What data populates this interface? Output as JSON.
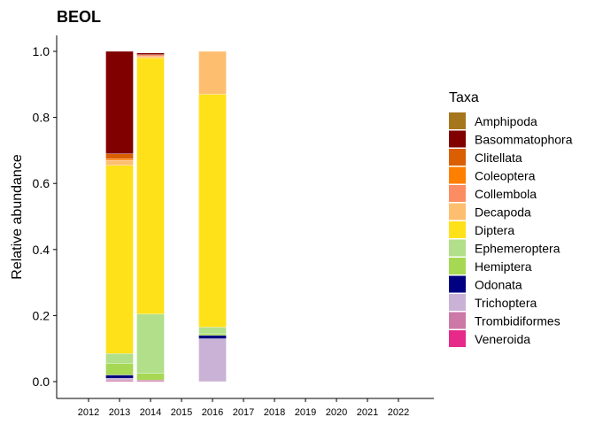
{
  "chart_data": {
    "type": "bar",
    "stacked": true,
    "title": "BEOL",
    "xlabel": "",
    "ylabel": "Relative abundance",
    "ylim": [
      0,
      1
    ],
    "yticks": [
      0.0,
      0.2,
      0.4,
      0.6,
      0.8,
      1.0
    ],
    "ytick_labels": [
      "0.0",
      "0.2",
      "0.4",
      "0.6",
      "0.8",
      "1.0"
    ],
    "categories": [
      "2012",
      "2013",
      "2014",
      "2015",
      "2016",
      "2017",
      "2018",
      "2019",
      "2020",
      "2021",
      "2022"
    ],
    "legend_title": "Taxa",
    "legend_position": "right",
    "grid": false,
    "series": [
      {
        "name": "Veneroida",
        "color": "#E7298A",
        "values": [
          0,
          0,
          0,
          0,
          0,
          0,
          0,
          0,
          0,
          0,
          0
        ]
      },
      {
        "name": "Trombidiformes",
        "color": "#CC79A7",
        "values": [
          0,
          0.005,
          0.005,
          0,
          0,
          0,
          0,
          0,
          0,
          0,
          0
        ]
      },
      {
        "name": "Trichoptera",
        "color": "#CAB2D6",
        "values": [
          0,
          0.005,
          0,
          0,
          0.13,
          0,
          0,
          0,
          0,
          0,
          0
        ]
      },
      {
        "name": "Odonata",
        "color": "#000080",
        "values": [
          0,
          0.01,
          0,
          0,
          0.01,
          0,
          0,
          0,
          0,
          0,
          0
        ]
      },
      {
        "name": "Hemiptera",
        "color": "#A6D854",
        "values": [
          0,
          0.035,
          0.02,
          0,
          0.005,
          0,
          0,
          0,
          0,
          0,
          0
        ]
      },
      {
        "name": "Ephemeroptera",
        "color": "#B2DF8A",
        "values": [
          0,
          0.03,
          0.18,
          0,
          0.02,
          0,
          0,
          0,
          0,
          0,
          0
        ]
      },
      {
        "name": "Diptera",
        "color": "#FFE119",
        "values": [
          0,
          0.57,
          0.775,
          0,
          0.705,
          0,
          0,
          0,
          0,
          0,
          0
        ]
      },
      {
        "name": "Decapoda",
        "color": "#FDBF6F",
        "values": [
          0,
          0.015,
          0.005,
          0,
          0.13,
          0,
          0,
          0,
          0,
          0,
          0
        ]
      },
      {
        "name": "Collembola",
        "color": "#FC8D62",
        "values": [
          0,
          0,
          0.005,
          0,
          0,
          0,
          0,
          0,
          0,
          0,
          0
        ]
      },
      {
        "name": "Coleoptera",
        "color": "#FF7F00",
        "values": [
          0,
          0.005,
          0,
          0,
          0,
          0,
          0,
          0,
          0,
          0,
          0
        ]
      },
      {
        "name": "Clitellata",
        "color": "#D95F02",
        "values": [
          0,
          0.015,
          0,
          0,
          0,
          0,
          0,
          0,
          0,
          0,
          0
        ]
      },
      {
        "name": "Basommatophora",
        "color": "#800000",
        "values": [
          0,
          0.31,
          0.005,
          0,
          0,
          0,
          0,
          0,
          0,
          0,
          0
        ]
      },
      {
        "name": "Amphipoda",
        "color": "#A6761D",
        "values": [
          0,
          0,
          0,
          0,
          0,
          0,
          0,
          0,
          0,
          0,
          0
        ]
      }
    ],
    "legend_order": [
      "Amphipoda",
      "Basommatophora",
      "Clitellata",
      "Coleoptera",
      "Collembola",
      "Decapoda",
      "Diptera",
      "Ephemeroptera",
      "Hemiptera",
      "Odonata",
      "Trichoptera",
      "Trombidiformes",
      "Veneroida"
    ]
  }
}
